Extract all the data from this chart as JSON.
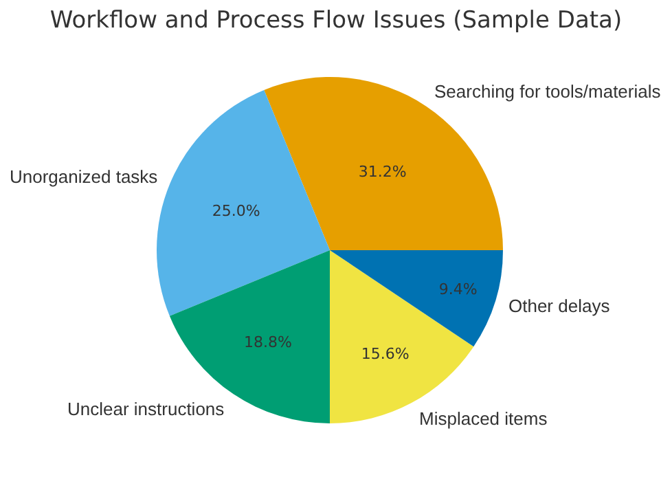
{
  "chart_data": {
    "type": "pie",
    "title": "Workflow and Process Flow Issues (Sample Data)",
    "categories": [
      "Searching for tools/materials",
      "Unorganized tasks",
      "Unclear instructions",
      "Misplaced items",
      "Other delays"
    ],
    "values": [
      31.2,
      25.0,
      18.8,
      15.6,
      9.4
    ],
    "value_labels": [
      "31.2%",
      "25.0%",
      "18.8%",
      "15.6%",
      "9.4%"
    ],
    "colors": [
      "#e69f00",
      "#56b4e9",
      "#009e73",
      "#f0e442",
      "#0072b2"
    ],
    "legend": false
  }
}
